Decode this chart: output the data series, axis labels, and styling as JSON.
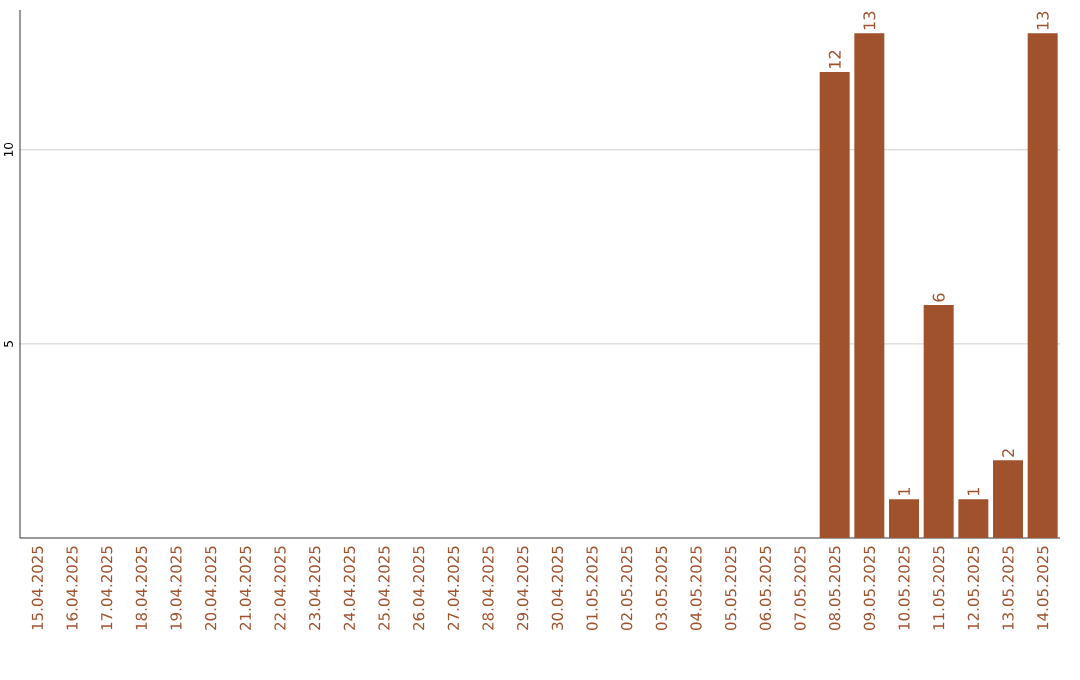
{
  "chart_data": {
    "type": "bar",
    "categories": [
      "15.04.2025",
      "16.04.2025",
      "17.04.2025",
      "18.04.2025",
      "19.04.2025",
      "20.04.2025",
      "21.04.2025",
      "22.04.2025",
      "23.04.2025",
      "24.04.2025",
      "25.04.2025",
      "26.04.2025",
      "27.04.2025",
      "28.04.2025",
      "29.04.2025",
      "30.04.2025",
      "01.05.2025",
      "02.05.2025",
      "03.05.2025",
      "04.05.2025",
      "05.05.2025",
      "06.05.2025",
      "07.05.2025",
      "08.05.2025",
      "09.05.2025",
      "10.05.2025",
      "11.05.2025",
      "12.05.2025",
      "13.05.2025",
      "14.05.2025"
    ],
    "values": [
      0,
      0,
      0,
      0,
      0,
      0,
      0,
      0,
      0,
      0,
      0,
      0,
      0,
      0,
      0,
      0,
      0,
      0,
      0,
      0,
      0,
      0,
      0,
      12,
      13,
      1,
      6,
      1,
      2,
      13
    ],
    "value_labels": [
      null,
      null,
      null,
      null,
      null,
      null,
      null,
      null,
      null,
      null,
      null,
      null,
      null,
      null,
      null,
      null,
      null,
      null,
      null,
      null,
      null,
      null,
      null,
      "12",
      "13",
      "1",
      "6",
      "1",
      "2",
      "13"
    ],
    "color": "#a0522d",
    "ylim": [
      0,
      13.6
    ],
    "yticks": [
      5,
      10
    ],
    "grid": "y"
  }
}
